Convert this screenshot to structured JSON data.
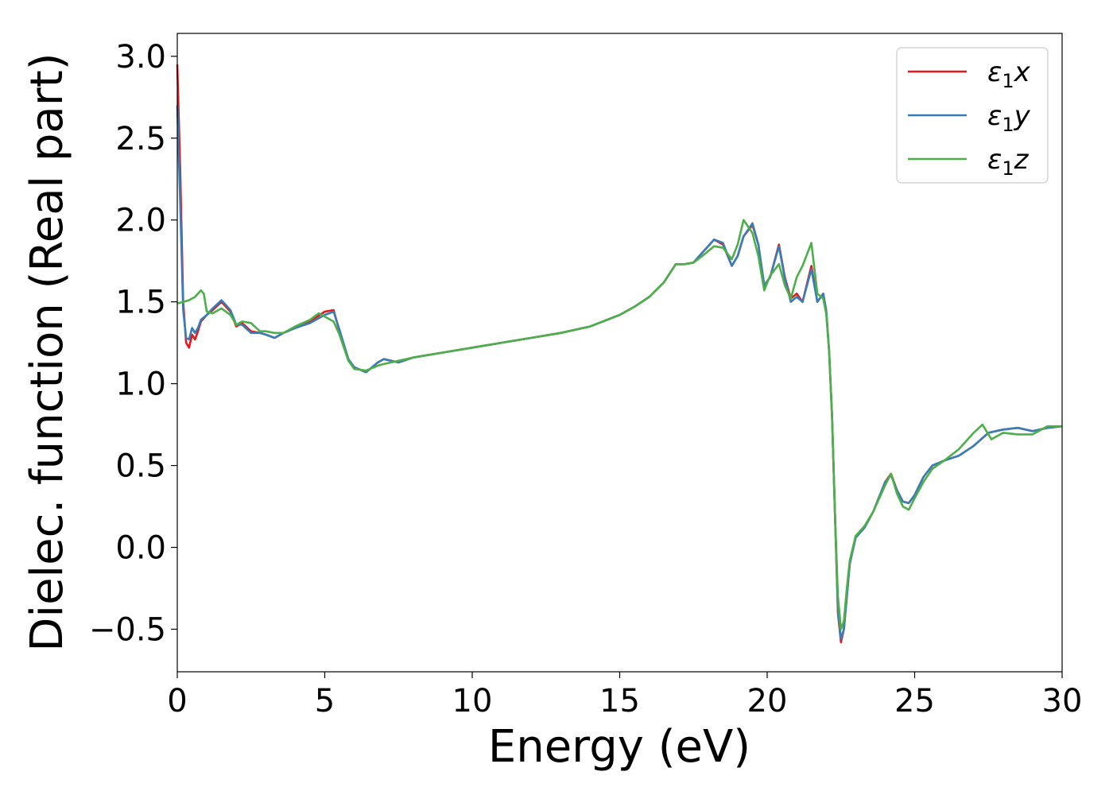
{
  "chart_data": {
    "type": "line",
    "xlabel": "Energy (eV)",
    "ylabel": "Dielec. function (Real part)",
    "xlim": [
      0,
      30
    ],
    "ylim": [
      -0.76,
      3.14
    ],
    "xticks": [
      0,
      5,
      10,
      15,
      20,
      25,
      30
    ],
    "xtick_labels": [
      "0",
      "5",
      "10",
      "15",
      "20",
      "25",
      "30"
    ],
    "yticks": [
      -0.5,
      0.0,
      0.5,
      1.0,
      1.5,
      2.0,
      2.5,
      3.0
    ],
    "ytick_labels": [
      "−0.5",
      "0.0",
      "0.5",
      "1.0",
      "1.5",
      "2.0",
      "2.5",
      "3.0"
    ],
    "grid": false,
    "legend_position": "top-right",
    "series": [
      {
        "name": "ε₁x",
        "legend_base": "ε",
        "legend_sub": "1",
        "legend_var": "x",
        "color": "#e41a1c",
        "x": [
          0.0,
          0.1,
          0.2,
          0.3,
          0.4,
          0.5,
          0.6,
          0.7,
          0.8,
          1.0,
          1.2,
          1.5,
          1.8,
          2.0,
          2.2,
          2.5,
          2.8,
          3.0,
          3.3,
          3.6,
          4.0,
          4.5,
          5.0,
          5.3,
          5.5,
          5.8,
          6.0,
          6.4,
          6.8,
          7.0,
          7.5,
          8.0,
          9.0,
          10.0,
          11.0,
          12.0,
          13.0,
          14.0,
          15.0,
          15.5,
          16.0,
          16.5,
          16.9,
          17.2,
          17.5,
          17.8,
          18.2,
          18.5,
          18.8,
          19.0,
          19.2,
          19.5,
          19.7,
          19.9,
          20.1,
          20.4,
          20.6,
          20.8,
          21.0,
          21.2,
          21.5,
          21.7,
          21.9,
          22.0,
          22.1,
          22.2,
          22.3,
          22.4,
          22.5,
          22.6,
          22.7,
          22.8,
          23.0,
          23.3,
          23.6,
          24.0,
          24.2,
          24.4,
          24.6,
          24.8,
          25.0,
          25.3,
          25.6,
          26.0,
          26.5,
          27.0,
          27.5,
          28.0,
          28.5,
          29.0,
          29.5,
          30.0
        ],
        "y": [
          2.95,
          2.3,
          1.5,
          1.25,
          1.22,
          1.3,
          1.27,
          1.32,
          1.38,
          1.42,
          1.45,
          1.5,
          1.44,
          1.35,
          1.37,
          1.32,
          1.31,
          1.3,
          1.28,
          1.31,
          1.34,
          1.38,
          1.44,
          1.45,
          1.32,
          1.15,
          1.1,
          1.07,
          1.13,
          1.15,
          1.13,
          1.16,
          1.19,
          1.22,
          1.25,
          1.28,
          1.31,
          1.35,
          1.42,
          1.47,
          1.53,
          1.62,
          1.73,
          1.73,
          1.74,
          1.8,
          1.88,
          1.85,
          1.72,
          1.78,
          1.9,
          1.97,
          1.85,
          1.6,
          1.65,
          1.85,
          1.65,
          1.52,
          1.55,
          1.5,
          1.72,
          1.5,
          1.55,
          1.45,
          1.2,
          0.8,
          0.2,
          -0.4,
          -0.58,
          -0.5,
          -0.3,
          -0.1,
          0.06,
          0.12,
          0.22,
          0.4,
          0.45,
          0.35,
          0.28,
          0.27,
          0.32,
          0.43,
          0.5,
          0.53,
          0.56,
          0.62,
          0.7,
          0.72,
          0.73,
          0.71,
          0.73,
          0.74
        ]
      },
      {
        "name": "ε₁y",
        "legend_base": "ε",
        "legend_sub": "1",
        "legend_var": "y",
        "color": "#377eb8",
        "x": [
          0.0,
          0.1,
          0.2,
          0.3,
          0.4,
          0.5,
          0.6,
          0.7,
          0.8,
          1.0,
          1.2,
          1.5,
          1.8,
          2.0,
          2.2,
          2.5,
          2.8,
          3.0,
          3.3,
          3.6,
          4.0,
          4.5,
          5.0,
          5.3,
          5.5,
          5.8,
          6.0,
          6.4,
          6.8,
          7.0,
          7.5,
          8.0,
          9.0,
          10.0,
          11.0,
          12.0,
          13.0,
          14.0,
          15.0,
          15.5,
          16.0,
          16.5,
          16.9,
          17.2,
          17.5,
          17.8,
          18.2,
          18.5,
          18.8,
          19.0,
          19.2,
          19.5,
          19.7,
          19.9,
          20.1,
          20.4,
          20.6,
          20.8,
          21.0,
          21.2,
          21.5,
          21.7,
          21.9,
          22.0,
          22.1,
          22.2,
          22.3,
          22.4,
          22.5,
          22.6,
          22.7,
          22.8,
          23.0,
          23.3,
          23.6,
          24.0,
          24.2,
          24.4,
          24.6,
          24.8,
          25.0,
          25.3,
          25.6,
          26.0,
          26.5,
          27.0,
          27.5,
          28.0,
          28.5,
          29.0,
          29.5,
          30.0
        ],
        "y": [
          2.7,
          2.1,
          1.45,
          1.28,
          1.27,
          1.34,
          1.31,
          1.34,
          1.39,
          1.42,
          1.46,
          1.51,
          1.45,
          1.36,
          1.36,
          1.31,
          1.31,
          1.3,
          1.28,
          1.31,
          1.34,
          1.37,
          1.42,
          1.44,
          1.33,
          1.15,
          1.1,
          1.07,
          1.13,
          1.15,
          1.13,
          1.16,
          1.19,
          1.22,
          1.25,
          1.28,
          1.31,
          1.35,
          1.42,
          1.47,
          1.53,
          1.62,
          1.73,
          1.73,
          1.74,
          1.8,
          1.88,
          1.86,
          1.72,
          1.78,
          1.9,
          1.98,
          1.85,
          1.6,
          1.65,
          1.84,
          1.64,
          1.5,
          1.53,
          1.5,
          1.7,
          1.5,
          1.55,
          1.45,
          1.2,
          0.8,
          0.2,
          -0.38,
          -0.56,
          -0.5,
          -0.3,
          -0.1,
          0.06,
          0.12,
          0.22,
          0.4,
          0.44,
          0.35,
          0.28,
          0.27,
          0.32,
          0.43,
          0.5,
          0.53,
          0.56,
          0.62,
          0.7,
          0.72,
          0.73,
          0.71,
          0.73,
          0.74
        ]
      },
      {
        "name": "ε₁z",
        "legend_base": "ε",
        "legend_sub": "1",
        "legend_var": "z",
        "color": "#4daf4a",
        "x": [
          0.0,
          0.2,
          0.4,
          0.6,
          0.8,
          0.9,
          1.0,
          1.2,
          1.5,
          1.8,
          2.0,
          2.2,
          2.5,
          2.8,
          3.0,
          3.3,
          3.6,
          4.0,
          4.5,
          4.8,
          5.0,
          5.3,
          5.5,
          5.8,
          6.0,
          6.4,
          6.8,
          7.0,
          7.5,
          8.0,
          9.0,
          10.0,
          11.0,
          12.0,
          13.0,
          14.0,
          15.0,
          15.5,
          16.0,
          16.5,
          16.9,
          17.2,
          17.5,
          17.8,
          18.2,
          18.5,
          18.8,
          19.0,
          19.2,
          19.5,
          19.7,
          19.9,
          20.1,
          20.4,
          20.6,
          20.8,
          21.0,
          21.2,
          21.5,
          21.7,
          21.9,
          22.0,
          22.1,
          22.2,
          22.3,
          22.4,
          22.5,
          22.6,
          22.7,
          22.8,
          23.0,
          23.3,
          23.6,
          24.0,
          24.2,
          24.4,
          24.6,
          24.8,
          25.0,
          25.3,
          25.6,
          26.0,
          26.5,
          27.0,
          27.3,
          27.6,
          28.0,
          28.5,
          29.0,
          29.5,
          30.0
        ],
        "y": [
          1.49,
          1.5,
          1.51,
          1.53,
          1.57,
          1.55,
          1.44,
          1.43,
          1.46,
          1.42,
          1.36,
          1.38,
          1.37,
          1.32,
          1.32,
          1.31,
          1.31,
          1.35,
          1.39,
          1.43,
          1.41,
          1.38,
          1.3,
          1.14,
          1.09,
          1.08,
          1.11,
          1.12,
          1.14,
          1.16,
          1.19,
          1.22,
          1.25,
          1.28,
          1.31,
          1.35,
          1.42,
          1.47,
          1.53,
          1.62,
          1.73,
          1.73,
          1.74,
          1.78,
          1.84,
          1.83,
          1.76,
          1.85,
          2.0,
          1.92,
          1.78,
          1.57,
          1.66,
          1.73,
          1.6,
          1.52,
          1.65,
          1.72,
          1.86,
          1.55,
          1.52,
          1.43,
          1.2,
          0.8,
          0.2,
          -0.3,
          -0.5,
          -0.45,
          -0.25,
          -0.08,
          0.07,
          0.13,
          0.22,
          0.38,
          0.45,
          0.33,
          0.25,
          0.23,
          0.3,
          0.4,
          0.48,
          0.53,
          0.6,
          0.7,
          0.75,
          0.66,
          0.7,
          0.69,
          0.69,
          0.74,
          0.74
        ]
      }
    ]
  }
}
